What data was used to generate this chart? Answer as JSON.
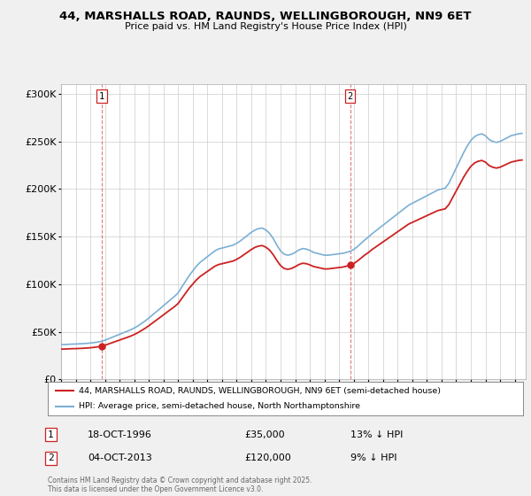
{
  "title": "44, MARSHALLS ROAD, RAUNDS, WELLINGBOROUGH, NN9 6ET",
  "subtitle": "Price paid vs. HM Land Registry's House Price Index (HPI)",
  "background_color": "#f0f0f0",
  "plot_bg_color": "#ffffff",
  "hpi_color": "#7bafd4",
  "price_color": "#cc2222",
  "vline_color": "#cc2222",
  "sale1_date": 1996.79,
  "sale1_price": 35000,
  "sale2_date": 2013.76,
  "sale2_price": 120000,
  "xmin": 1994.0,
  "xmax": 2025.75,
  "ymin": 0,
  "ymax": 310000,
  "yticks": [
    0,
    50000,
    100000,
    150000,
    200000,
    250000,
    300000
  ],
  "ytick_labels": [
    "£0",
    "£50K",
    "£100K",
    "£150K",
    "£200K",
    "£250K",
    "£300K"
  ],
  "legend1_label": "44, MARSHALLS ROAD, RAUNDS, WELLINGBOROUGH, NN9 6ET (semi-detached house)",
  "legend2_label": "HPI: Average price, semi-detached house, North Northamptonshire",
  "copyright": "Contains HM Land Registry data © Crown copyright and database right 2025.\nThis data is licensed under the Open Government Licence v3.0.",
  "hpi_data": [
    [
      1994.0,
      36500
    ],
    [
      1994.25,
      36700
    ],
    [
      1994.5,
      36900
    ],
    [
      1994.75,
      37100
    ],
    [
      1995.0,
      37200
    ],
    [
      1995.25,
      37400
    ],
    [
      1995.5,
      37600
    ],
    [
      1995.75,
      37900
    ],
    [
      1996.0,
      38200
    ],
    [
      1996.25,
      38700
    ],
    [
      1996.5,
      39300
    ],
    [
      1996.75,
      40000
    ],
    [
      1997.0,
      41200
    ],
    [
      1997.25,
      42800
    ],
    [
      1997.5,
      44300
    ],
    [
      1997.75,
      45900
    ],
    [
      1998.0,
      47400
    ],
    [
      1998.25,
      49000
    ],
    [
      1998.5,
      50500
    ],
    [
      1998.75,
      52100
    ],
    [
      1999.0,
      54000
    ],
    [
      1999.25,
      56200
    ],
    [
      1999.5,
      58800
    ],
    [
      1999.75,
      61500
    ],
    [
      2000.0,
      64500
    ],
    [
      2000.25,
      67800
    ],
    [
      2000.5,
      71000
    ],
    [
      2000.75,
      74200
    ],
    [
      2001.0,
      77500
    ],
    [
      2001.25,
      80800
    ],
    [
      2001.5,
      84000
    ],
    [
      2001.75,
      87200
    ],
    [
      2002.0,
      91000
    ],
    [
      2002.25,
      97000
    ],
    [
      2002.5,
      103000
    ],
    [
      2002.75,
      109000
    ],
    [
      2003.0,
      114000
    ],
    [
      2003.25,
      119000
    ],
    [
      2003.5,
      123000
    ],
    [
      2003.75,
      126000
    ],
    [
      2004.0,
      129000
    ],
    [
      2004.25,
      132000
    ],
    [
      2004.5,
      135000
    ],
    [
      2004.75,
      137000
    ],
    [
      2005.0,
      138000
    ],
    [
      2005.25,
      139000
    ],
    [
      2005.5,
      140000
    ],
    [
      2005.75,
      141000
    ],
    [
      2006.0,
      143000
    ],
    [
      2006.25,
      145500
    ],
    [
      2006.5,
      148500
    ],
    [
      2006.75,
      151500
    ],
    [
      2007.0,
      154500
    ],
    [
      2007.25,
      157000
    ],
    [
      2007.5,
      158500
    ],
    [
      2007.75,
      159000
    ],
    [
      2008.0,
      157000
    ],
    [
      2008.25,
      153500
    ],
    [
      2008.5,
      148000
    ],
    [
      2008.75,
      141000
    ],
    [
      2009.0,
      135000
    ],
    [
      2009.25,
      131500
    ],
    [
      2009.5,
      130500
    ],
    [
      2009.75,
      131500
    ],
    [
      2010.0,
      133500
    ],
    [
      2010.25,
      136000
    ],
    [
      2010.5,
      137500
    ],
    [
      2010.75,
      137000
    ],
    [
      2011.0,
      135500
    ],
    [
      2011.25,
      133500
    ],
    [
      2011.5,
      132500
    ],
    [
      2011.75,
      131500
    ],
    [
      2012.0,
      130500
    ],
    [
      2012.25,
      130500
    ],
    [
      2012.5,
      131000
    ],
    [
      2012.75,
      131500
    ],
    [
      2013.0,
      132000
    ],
    [
      2013.25,
      132500
    ],
    [
      2013.5,
      133500
    ],
    [
      2013.75,
      134500
    ],
    [
      2014.0,
      136500
    ],
    [
      2014.25,
      139500
    ],
    [
      2014.5,
      143000
    ],
    [
      2014.75,
      146500
    ],
    [
      2015.0,
      149500
    ],
    [
      2015.25,
      153000
    ],
    [
      2015.5,
      156000
    ],
    [
      2015.75,
      159000
    ],
    [
      2016.0,
      162000
    ],
    [
      2016.25,
      165000
    ],
    [
      2016.5,
      168000
    ],
    [
      2016.75,
      171000
    ],
    [
      2017.0,
      174000
    ],
    [
      2017.25,
      177000
    ],
    [
      2017.5,
      180000
    ],
    [
      2017.75,
      183000
    ],
    [
      2018.0,
      185000
    ],
    [
      2018.25,
      187000
    ],
    [
      2018.5,
      189000
    ],
    [
      2018.75,
      191000
    ],
    [
      2019.0,
      193000
    ],
    [
      2019.25,
      195000
    ],
    [
      2019.5,
      197000
    ],
    [
      2019.75,
      199000
    ],
    [
      2020.0,
      200000
    ],
    [
      2020.25,
      201000
    ],
    [
      2020.5,
      206000
    ],
    [
      2020.75,
      214000
    ],
    [
      2021.0,
      222000
    ],
    [
      2021.25,
      230000
    ],
    [
      2021.5,
      238000
    ],
    [
      2021.75,
      245000
    ],
    [
      2022.0,
      251000
    ],
    [
      2022.25,
      255000
    ],
    [
      2022.5,
      257000
    ],
    [
      2022.75,
      258000
    ],
    [
      2023.0,
      256000
    ],
    [
      2023.25,
      252000
    ],
    [
      2023.5,
      250000
    ],
    [
      2023.75,
      249000
    ],
    [
      2024.0,
      250000
    ],
    [
      2024.25,
      252000
    ],
    [
      2024.5,
      254000
    ],
    [
      2024.75,
      256000
    ],
    [
      2025.0,
      257000
    ],
    [
      2025.25,
      258000
    ],
    [
      2025.5,
      258500
    ]
  ]
}
